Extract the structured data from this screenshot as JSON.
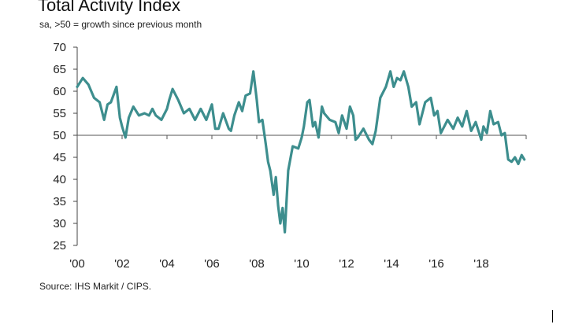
{
  "chart_data": {
    "type": "line",
    "title": "Total Activity Index",
    "subtitle": "sa, >50 = growth since previous month",
    "xlabel": "",
    "ylabel": "",
    "ylim": [
      25,
      70
    ],
    "xlim": [
      2000,
      2020
    ],
    "yticks": [
      25,
      30,
      35,
      40,
      45,
      50,
      55,
      60,
      65,
      70
    ],
    "yticklabels": [
      "25",
      "30",
      "35",
      "40",
      "45",
      "50",
      "55",
      "60",
      "65",
      "70"
    ],
    "xticks": [
      2000,
      2002,
      2004,
      2006,
      2008,
      2010,
      2012,
      2014,
      2016,
      2018
    ],
    "xticklabels": [
      "'00",
      "'02",
      "'04",
      "'06",
      "'08",
      "'10",
      "'12",
      "'14",
      "'16",
      "'18"
    ],
    "reference_line": 50,
    "grid": false,
    "legend": "none",
    "series": [
      {
        "color": "#3d8e8e",
        "x": [
          2000.0,
          2000.25,
          2000.5,
          2000.75,
          2001.0,
          2001.2,
          2001.35,
          2001.5,
          2001.75,
          2001.9,
          2002.0,
          2002.15,
          2002.3,
          2002.5,
          2002.75,
          2003.0,
          2003.2,
          2003.35,
          2003.5,
          2003.75,
          2004.0,
          2004.1,
          2004.25,
          2004.5,
          2004.75,
          2005.0,
          2005.25,
          2005.5,
          2005.75,
          2006.0,
          2006.15,
          2006.3,
          2006.5,
          2006.75,
          2006.85,
          2007.0,
          2007.2,
          2007.35,
          2007.5,
          2007.7,
          2007.85,
          2008.0,
          2008.1,
          2008.25,
          2008.4,
          2008.5,
          2008.6,
          2008.75,
          2008.85,
          2008.95,
          2009.05,
          2009.15,
          2009.25,
          2009.4,
          2009.6,
          2009.85,
          2010.0,
          2010.1,
          2010.25,
          2010.35,
          2010.5,
          2010.6,
          2010.75,
          2010.9,
          2011.0,
          2011.25,
          2011.5,
          2011.65,
          2011.8,
          2012.0,
          2012.15,
          2012.3,
          2012.4,
          2012.5,
          2012.75,
          2013.0,
          2013.15,
          2013.3,
          2013.5,
          2013.75,
          2013.95,
          2014.1,
          2014.25,
          2014.4,
          2014.55,
          2014.75,
          2014.9,
          2015.1,
          2015.25,
          2015.5,
          2015.75,
          2015.9,
          2016.05,
          2016.2,
          2016.35,
          2016.5,
          2016.75,
          2016.95,
          2017.15,
          2017.35,
          2017.55,
          2017.75,
          2018.0,
          2018.1,
          2018.25,
          2018.4,
          2018.55,
          2018.75,
          2018.9,
          2019.05,
          2019.2,
          2019.35,
          2019.5,
          2019.65,
          2019.8,
          2019.92
        ],
        "y": [
          61,
          63,
          61.5,
          58.5,
          57.5,
          53.5,
          57,
          57.5,
          61,
          54,
          52,
          49.5,
          54,
          56.5,
          54.5,
          55,
          54.5,
          56,
          54.5,
          53.5,
          56,
          58,
          60.5,
          58,
          55,
          56,
          53.5,
          56,
          53.5,
          57,
          51.5,
          51.5,
          55,
          51.5,
          51,
          54.5,
          57.5,
          55.5,
          59,
          59.5,
          64.5,
          58,
          53,
          53.5,
          48,
          44,
          42,
          36.5,
          40.5,
          34,
          30,
          33.5,
          28,
          42,
          47.5,
          47,
          49.5,
          52,
          57.5,
          58,
          52,
          53,
          49.5,
          56.5,
          55,
          53.5,
          53,
          50.5,
          54.5,
          51.5,
          56.5,
          54.5,
          49,
          49.5,
          51.5,
          49,
          48,
          51,
          58.5,
          61,
          64.5,
          61,
          63,
          62.5,
          64.5,
          61,
          56.5,
          57.5,
          52.5,
          57.5,
          58.5,
          54.5,
          55.5,
          50.5,
          52,
          53.5,
          51.5,
          54,
          52,
          55.5,
          51,
          53,
          49,
          52,
          50.5,
          55.5,
          52.5,
          53,
          50,
          50.5,
          44.5,
          44,
          45,
          43.5,
          45.5,
          44.5
        ]
      }
    ]
  },
  "source": "Source: IHS Markit / CIPS."
}
